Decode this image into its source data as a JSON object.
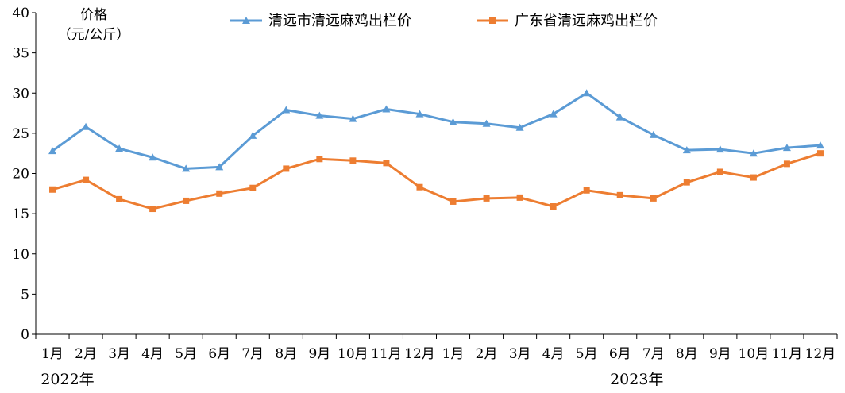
{
  "chart_data": {
    "type": "line",
    "ylabel_line1": "价格",
    "ylabel_line2": "（元/公斤）",
    "ylim": [
      0,
      40
    ],
    "yticks": [
      0,
      5,
      10,
      15,
      20,
      25,
      30,
      35,
      40
    ],
    "grid": false,
    "legend_position": "top-center",
    "categories": [
      "1月",
      "2月",
      "3月",
      "4月",
      "5月",
      "6月",
      "7月",
      "8月",
      "9月",
      "10月",
      "11月",
      "12月",
      "1月",
      "2月",
      "3月",
      "4月",
      "5月",
      "6月",
      "7月",
      "8月",
      "9月",
      "10月",
      "11月",
      "12月"
    ],
    "year_groups": [
      {
        "label": "2022年",
        "start": 0,
        "end": 11
      },
      {
        "label": "2023年",
        "start": 12,
        "end": 23
      }
    ],
    "series": [
      {
        "name": "清远市清远麻鸡出栏价",
        "color": "#5B9BD5",
        "marker": "triangle",
        "values": [
          22.8,
          25.8,
          23.1,
          22.0,
          20.6,
          20.8,
          24.7,
          27.9,
          27.2,
          26.8,
          28.0,
          27.4,
          26.4,
          26.2,
          25.7,
          27.4,
          30.0,
          27.0,
          24.8,
          22.9,
          23.0,
          22.5,
          23.2,
          23.5
        ]
      },
      {
        "name": "广东省清远麻鸡出栏价",
        "color": "#ED7D31",
        "marker": "square",
        "values": [
          18.0,
          19.2,
          16.8,
          15.6,
          16.6,
          17.5,
          18.2,
          20.6,
          21.8,
          21.6,
          21.3,
          18.3,
          16.5,
          16.9,
          17.0,
          15.9,
          17.9,
          17.3,
          16.9,
          18.9,
          20.2,
          19.5,
          21.2,
          22.5
        ]
      }
    ]
  }
}
